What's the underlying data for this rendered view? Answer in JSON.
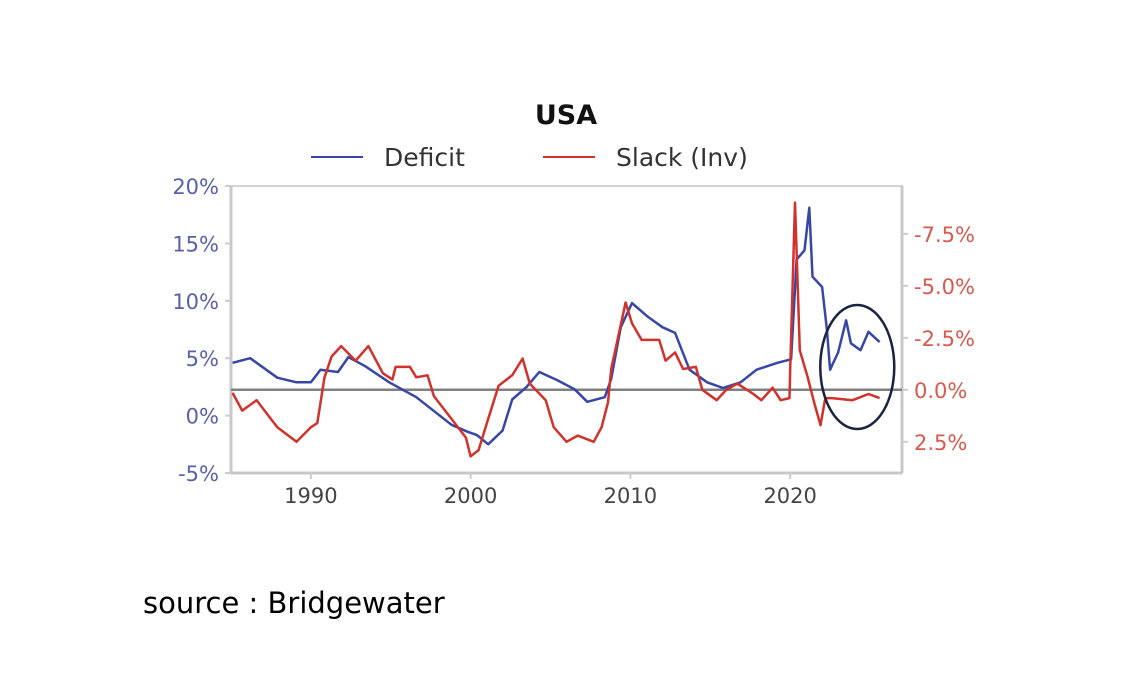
{
  "chart_data": {
    "type": "line",
    "title": "USA",
    "legend_placement": "top",
    "x_ticks": [
      1990,
      2000,
      2010,
      2020
    ],
    "xlim": [
      1985,
      2027
    ],
    "left_axis": {
      "range": [
        -5,
        20
      ],
      "ticks": [
        "20%",
        "15%",
        "10%",
        "5%",
        "0%",
        "-5%"
      ],
      "tick_values": [
        20,
        15,
        10,
        5,
        0,
        -5
      ],
      "color": "#5a60aa"
    },
    "right_axis": {
      "range": [
        -9.8,
        4.0
      ],
      "inverted": true,
      "ticks": [
        "-7.5%",
        "-5.0%",
        "-2.5%",
        "0.0%",
        "2.5%"
      ],
      "tick_values": [
        -7.5,
        -5.0,
        -2.5,
        0.0,
        2.5
      ],
      "color": "#d65a4e"
    },
    "reference_line": {
      "axis": "right",
      "value": 0.0
    },
    "annotation": {
      "shape": "ellipse",
      "around": "2023-2025",
      "color": "#1a2340"
    },
    "series": [
      {
        "name": "Deficit",
        "axis": "left",
        "color": "#3847a6",
        "x": [
          1985.1,
          1986.2,
          1987.9,
          1989.1,
          1990,
          1990.6,
          1991.7,
          1992.35,
          1993.4,
          1994.9,
          1996.6,
          1998.8,
          1999.8,
          2000.4,
          2001.1,
          2002.0,
          2002.6,
          2003.5,
          2004.3,
          2005.4,
          2006.5,
          2007.3,
          2008.4,
          2008.8,
          2009.4,
          2010.1,
          2011.1,
          2012.0,
          2012.8,
          2013.7,
          2014.8,
          2015.8,
          2016.9,
          2017.9,
          2019.2,
          2020.06,
          2020.4,
          2020.9,
          2021.2,
          2021.4,
          2022.0,
          2022.3,
          2022.5,
          2023.0,
          2023.5,
          2023.8,
          2024.4,
          2024.9,
          2025.6
        ],
        "values": [
          4.6,
          5.0,
          3.3,
          2.9,
          2.9,
          4.0,
          3.8,
          5.1,
          4.3,
          2.9,
          1.6,
          -0.8,
          -1.4,
          -1.7,
          -2.5,
          -1.3,
          1.4,
          2.5,
          3.8,
          3.1,
          2.3,
          1.2,
          1.6,
          3.2,
          7.7,
          9.8,
          8.6,
          7.7,
          7.2,
          4.0,
          2.9,
          2.4,
          2.9,
          4.0,
          4.6,
          4.9,
          13.6,
          14.4,
          18.1,
          12.1,
          11.2,
          7.5,
          4.0,
          5.5,
          8.3,
          6.3,
          5.7,
          7.3,
          6.4
        ]
      },
      {
        "name": "Slack (Inv)",
        "axis": "right",
        "color": "#d0322c",
        "x": [
          1985.1,
          1985.7,
          1986.6,
          1987.9,
          1989.1,
          1990,
          1990.4,
          1990.85,
          1991.3,
          1991.9,
          1992.8,
          1993.6,
          1994.5,
          1995.1,
          1995.3,
          1996.2,
          1996.6,
          1997.3,
          1997.7,
          1998.8,
          1999.7,
          2000.0,
          2000.5,
          2001.1,
          2001.75,
          2002.6,
          2003.25,
          2003.7,
          2004.7,
          2005.2,
          2006.0,
          2006.7,
          2007.7,
          2008.2,
          2008.6,
          2008.8,
          2009.7,
          2010.1,
          2010.7,
          2011.8,
          2012.2,
          2012.8,
          2013.3,
          2014.1,
          2014.5,
          2015.4,
          2016.0,
          2016.7,
          2017.7,
          2018.2,
          2018.9,
          2019.4,
          2019.96,
          2020.0,
          2020.3,
          2020.6,
          2021.1,
          2021.5,
          2021.9,
          2022.2,
          2022.6,
          2023.9,
          2024.9,
          2025.6
        ],
        "values": [
          0.15,
          1.0,
          0.5,
          1.8,
          2.5,
          1.8,
          1.6,
          -0.6,
          -1.6,
          -2.1,
          -1.4,
          -2.1,
          -0.8,
          -0.5,
          -1.1,
          -1.1,
          -0.6,
          -0.7,
          0.3,
          1.4,
          2.3,
          3.2,
          2.9,
          1.4,
          -0.2,
          -0.7,
          -1.5,
          -0.3,
          0.5,
          1.8,
          2.5,
          2.2,
          2.5,
          1.8,
          0.6,
          -1.0,
          -4.2,
          -3.2,
          -2.4,
          -2.4,
          -1.4,
          -1.8,
          -1.0,
          -1.1,
          0.0,
          0.5,
          0.0,
          -0.3,
          0.2,
          0.5,
          -0.1,
          0.5,
          0.4,
          -1.0,
          -9.0,
          -1.9,
          -0.6,
          0.6,
          1.7,
          0.4,
          0.4,
          0.5,
          0.2,
          0.4
        ]
      }
    ]
  },
  "source": "source : Bridgewater"
}
